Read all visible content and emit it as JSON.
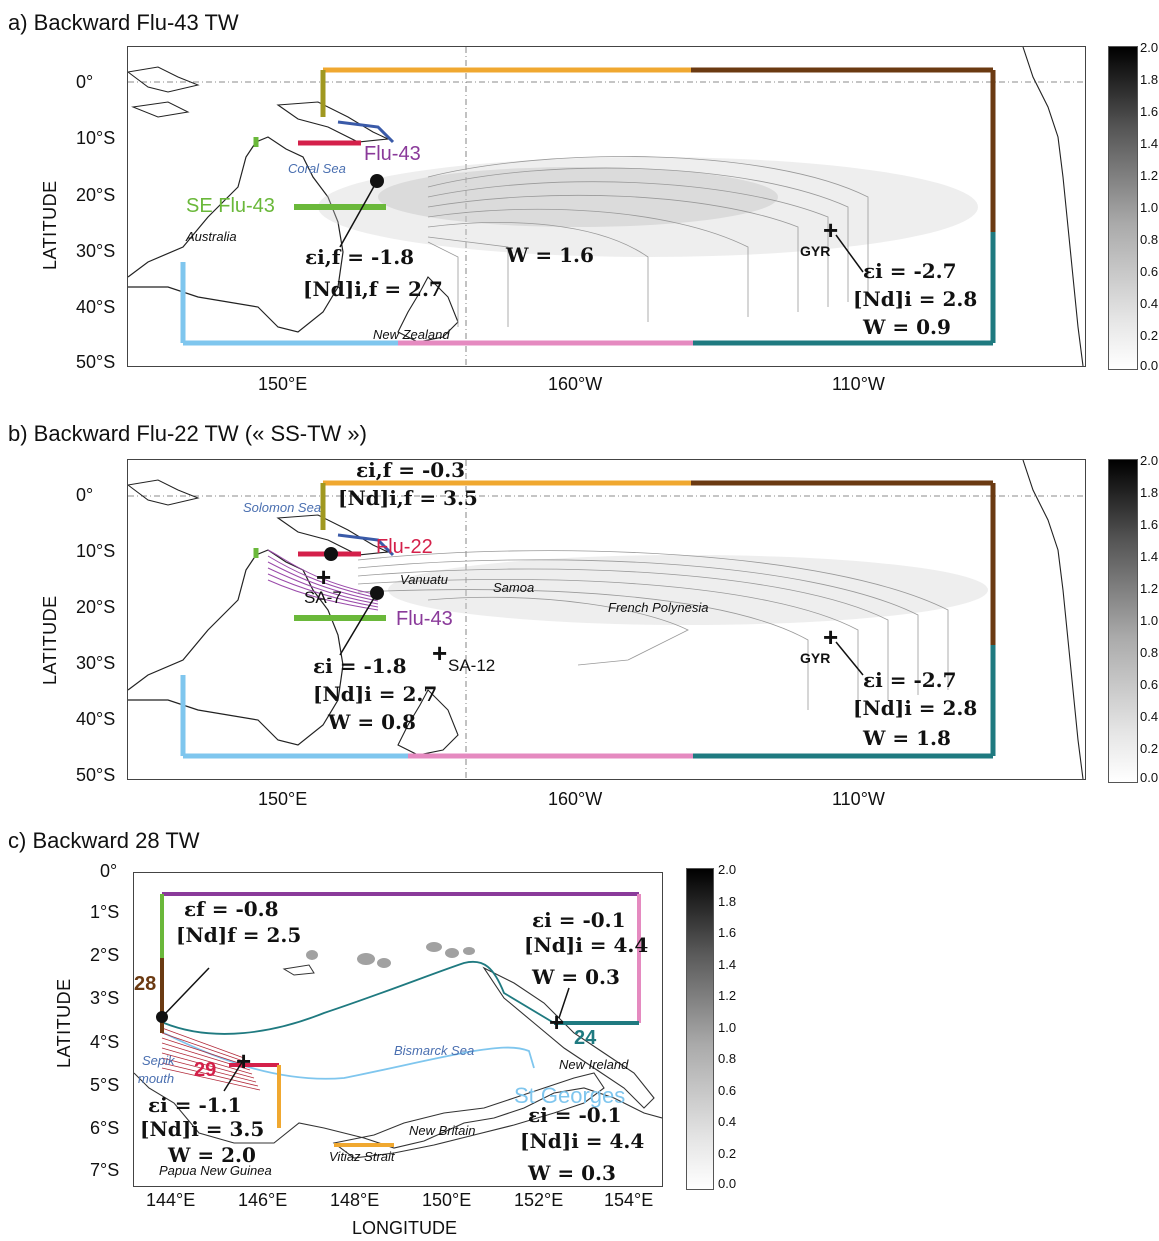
{
  "panel_a": {
    "title": "a) Backward Flu-43 TW",
    "ylabel": "LATITUDE",
    "yticks": [
      "0°",
      "10°S",
      "20°S",
      "30°S",
      "40°S",
      "50°S"
    ],
    "xticks": [
      "150°E",
      "160°W",
      "110°W"
    ],
    "labels": {
      "coral_sea": "Coral Sea",
      "australia": "Australia",
      "new_zealand": "New Zealand",
      "flu43": "Flu-43",
      "se_flu43": "SE Flu-43",
      "gyr": "GYR",
      "eps_f": "εi,f = -1.8",
      "nd_f": "[Nd]i,f = 2.7",
      "w_mid": "W = 1.6",
      "eps_i": "εi = -2.7",
      "nd_i": "[Nd]i = 2.8",
      "w_i": "W = 0.9"
    },
    "colorbar_ticks": [
      "2.0",
      "1.8",
      "1.6",
      "1.4",
      "1.2",
      "1.0",
      "0.8",
      "0.6",
      "0.4",
      "0.2",
      "0.0"
    ]
  },
  "panel_b": {
    "title": "b) Backward Flu-22 TW (« SS-TW »)",
    "ylabel": "LATITUDE",
    "yticks": [
      "0°",
      "10°S",
      "20°S",
      "30°S",
      "40°S",
      "50°S"
    ],
    "xticks": [
      "150°E",
      "160°W",
      "110°W"
    ],
    "labels": {
      "solomon_sea": "Solomon Sea",
      "vanuatu": "Vanuatu",
      "samoa": "Samoa",
      "french_polynesia": "French Polynesia",
      "flu22": "Flu-22",
      "flu43": "Flu-43",
      "sa7": "SA-7",
      "sa12": "SA-12",
      "gyr": "GYR",
      "eps_top": "εi,f = -0.3",
      "nd_top": "[Nd]i,f = 3.5",
      "eps_left": "εi = -1.8",
      "nd_left": "[Nd]i = 2.7",
      "w_left": "W = 0.8",
      "eps_right": "εi = -2.7",
      "nd_right": "[Nd]i = 2.8",
      "w_right": "W = 1.8"
    },
    "colorbar_ticks": [
      "2.0",
      "1.8",
      "1.6",
      "1.4",
      "1.2",
      "1.0",
      "0.8",
      "0.6",
      "0.4",
      "0.2",
      "0.0"
    ]
  },
  "panel_c": {
    "title": "c) Backward 28 TW",
    "ylabel": "LATITUDE",
    "xlabel": "LONGITUDE",
    "yticks": [
      "0°",
      "1°S",
      "2°S",
      "3°S",
      "4°S",
      "5°S",
      "6°S",
      "7°S"
    ],
    "xticks": [
      "144°E",
      "146°E",
      "148°E",
      "150°E",
      "152°E",
      "154°E"
    ],
    "labels": {
      "section28": "28",
      "section29": "29",
      "section24": "24",
      "st_georges": "St Georges",
      "bismarck_sea": "Bismarck Sea",
      "new_ireland": "New Ireland",
      "new_britain": "New Britain",
      "vitiaz_strait": "Vitiaz Strait",
      "png": "Papua New Guinea",
      "sepik": "Sepik",
      "mouth": "mouth",
      "eps_f": "εf = -0.8",
      "nd_f": "[Nd]f = 2.5",
      "eps_tr": "εi = -0.1",
      "nd_tr": "[Nd]i = 4.4",
      "w_tr": "W = 0.3",
      "eps_bl": "εi = -1.1",
      "nd_bl": "[Nd]i = 3.5",
      "w_bl": "W = 2.0",
      "eps_br": "εi = -0.1",
      "nd_br": "[Nd]i = 4.4",
      "w_br": "W = 0.3"
    },
    "colorbar_ticks": [
      "2.0",
      "1.8",
      "1.6",
      "1.4",
      "1.2",
      "1.0",
      "0.8",
      "0.6",
      "0.4",
      "0.2",
      "0.0"
    ]
  },
  "colors": {
    "orange": "#f0a830",
    "brown": "#6b3a12",
    "teal": "#1f7a80",
    "pink": "#e58ac0",
    "lightblue": "#7fc6ee",
    "red": "#d4204a",
    "green": "#6ab83a",
    "purple": "#8a3a9a",
    "olive": "#a09820",
    "sea_label": "#4a6fb0"
  }
}
